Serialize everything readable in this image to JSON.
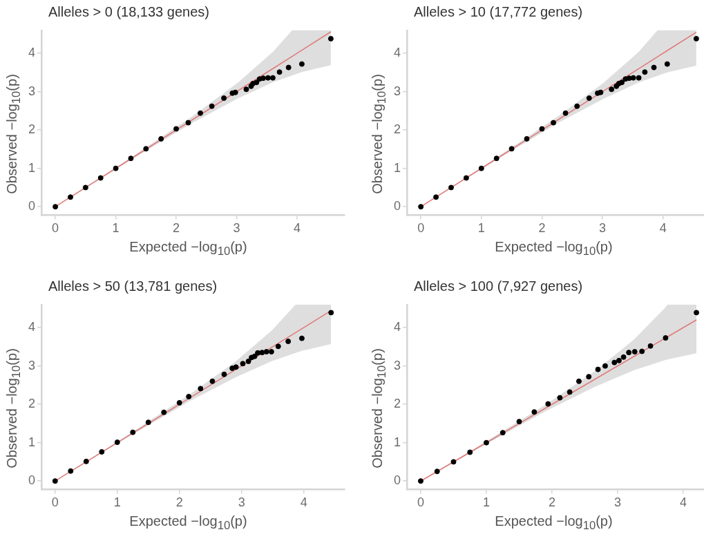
{
  "chart_data": [
    {
      "type": "scatter",
      "title": "Alleles > 0 (18,133 genes)",
      "xlabel": "Expected −log$_{10}$(p)",
      "ylabel": "Observed −log$_{10}$(p)",
      "xlim": [
        -0.23,
        4.79
      ],
      "ylim": [
        -0.22,
        4.6
      ],
      "xticks": [
        0,
        1,
        2,
        3,
        4
      ],
      "yticks": [
        0,
        1,
        2,
        3,
        4
      ],
      "grid": false,
      "series": [
        {
          "type": "line",
          "marker": "none",
          "color": "#e07b7b",
          "x": [
            0,
            1.26,
            2.26,
            3.02,
            3.61,
            3.92,
            4.08,
            4.56
          ],
          "values": [
            0,
            1.26,
            2.26,
            3.02,
            3.61,
            3.92,
            4.08,
            4.56
          ],
          "lower": [
            0,
            1.23,
            2.18,
            2.82,
            3.25,
            3.42,
            3.51,
            3.69
          ],
          "upper": [
            0,
            1.29,
            2.35,
            3.23,
            4.05,
            4.6,
            4.6,
            4.6
          ]
        },
        {
          "marker": "circle",
          "color": "#000000",
          "x": [
            0,
            0.25,
            0.5,
            0.75,
            1,
            1.25,
            1.5,
            1.75,
            2,
            2.2,
            2.4,
            2.59,
            2.79,
            2.93,
            2.98,
            3.16,
            3.24,
            3.27,
            3.33,
            3.38,
            3.44,
            3.52,
            3.6,
            3.71,
            3.86,
            4.08,
            4.56
          ],
          "values": [
            0,
            0.25,
            0.5,
            0.75,
            1,
            1.26,
            1.51,
            1.77,
            2.03,
            2.19,
            2.44,
            2.62,
            2.83,
            2.96,
            2.98,
            3.06,
            3.14,
            3.21,
            3.24,
            3.33,
            3.35,
            3.36,
            3.36,
            3.51,
            3.63,
            3.72,
            4.38
          ]
        }
      ]
    },
    {
      "type": "scatter",
      "title": "Alleles > 10 (17,772 genes)",
      "xlabel": "Expected −log$_{10}$(p)",
      "ylabel": "Observed −log$_{10}$(p)",
      "xlim": [
        -0.23,
        4.78
      ],
      "ylim": [
        -0.22,
        4.6
      ],
      "xticks": [
        0,
        1,
        2,
        3,
        4
      ],
      "yticks": [
        0,
        1,
        2,
        3,
        4
      ],
      "grid": false,
      "series": [
        {
          "type": "line",
          "marker": "none",
          "color": "#e07b7b",
          "x": [
            0,
            1.25,
            2.25,
            3.01,
            3.6,
            3.91,
            4.07,
            4.55
          ],
          "values": [
            0,
            1.25,
            2.25,
            3.01,
            3.6,
            3.91,
            4.07,
            4.55
          ],
          "lower": [
            0,
            1.22,
            2.17,
            2.81,
            3.24,
            3.41,
            3.5,
            3.68
          ],
          "upper": [
            0,
            1.28,
            2.34,
            3.22,
            4.04,
            4.6,
            4.6,
            4.6
          ]
        },
        {
          "marker": "circle",
          "color": "#000000",
          "x": [
            0,
            0.25,
            0.5,
            0.75,
            1,
            1.25,
            1.5,
            1.75,
            2,
            2.19,
            2.39,
            2.58,
            2.78,
            2.92,
            2.97,
            3.15,
            3.23,
            3.27,
            3.32,
            3.38,
            3.44,
            3.51,
            3.6,
            3.7,
            3.85,
            4.07,
            4.55
          ],
          "values": [
            0,
            0.25,
            0.5,
            0.75,
            1,
            1.26,
            1.51,
            1.77,
            2.03,
            2.19,
            2.44,
            2.62,
            2.83,
            2.96,
            2.98,
            3.06,
            3.14,
            3.21,
            3.24,
            3.33,
            3.35,
            3.36,
            3.36,
            3.51,
            3.63,
            3.72,
            4.38
          ]
        }
      ]
    },
    {
      "type": "scatter",
      "title": "Alleles > 50 (13,781 genes)",
      "xlabel": "Expected −log$_{10}$(p)",
      "ylabel": "Observed −log$_{10}$(p)",
      "xlim": [
        -0.22,
        4.66
      ],
      "ylim": [
        -0.22,
        4.6
      ],
      "xticks": [
        0,
        1,
        2,
        3,
        4
      ],
      "yticks": [
        0,
        1,
        2,
        3,
        4
      ],
      "grid": false,
      "series": [
        {
          "type": "line",
          "marker": "none",
          "color": "#e07b7b",
          "x": [
            0,
            1.14,
            2.14,
            2.9,
            3.49,
            3.87,
            3.96,
            4.44
          ],
          "values": [
            0,
            1.14,
            2.14,
            2.9,
            3.49,
            3.87,
            3.96,
            4.44
          ],
          "lower": [
            0,
            1.11,
            2.06,
            2.7,
            3.13,
            3.34,
            3.39,
            3.57
          ],
          "upper": [
            0,
            1.17,
            2.23,
            3.11,
            3.93,
            4.6,
            4.6,
            4.6
          ]
        },
        {
          "marker": "circle",
          "color": "#000000",
          "x": [
            0,
            0.25,
            0.5,
            0.75,
            1,
            1.25,
            1.5,
            1.75,
            2,
            2.15,
            2.34,
            2.53,
            2.72,
            2.85,
            2.91,
            3.02,
            3.11,
            3.16,
            3.21,
            3.26,
            3.33,
            3.4,
            3.48,
            3.59,
            3.75,
            3.97,
            4.44
          ],
          "values": [
            0,
            0.26,
            0.51,
            0.76,
            1.01,
            1.27,
            1.53,
            1.79,
            2.04,
            2.2,
            2.41,
            2.6,
            2.78,
            2.94,
            2.97,
            3.06,
            3.12,
            3.22,
            3.25,
            3.34,
            3.35,
            3.37,
            3.37,
            3.51,
            3.64,
            3.72,
            4.39
          ]
        }
      ]
    },
    {
      "type": "scatter",
      "title": "Alleles > 100 (7,927 genes)",
      "xlabel": "Expected −log$_{10}$(p)",
      "ylabel": "Observed −log$_{10}$(p)",
      "xlim": [
        -0.21,
        4.41
      ],
      "ylim": [
        -0.22,
        4.6
      ],
      "xticks": [
        0,
        1,
        2,
        3,
        4
      ],
      "yticks": [
        0,
        1,
        2,
        3,
        4
      ],
      "grid": false,
      "series": [
        {
          "type": "line",
          "marker": "none",
          "color": "#e07b7b",
          "x": [
            0,
            0.9,
            1.9,
            2.66,
            3.25,
            3.72,
            3.76,
            4.2
          ],
          "values": [
            0,
            0.9,
            1.9,
            2.66,
            3.25,
            3.72,
            3.76,
            4.2
          ],
          "lower": [
            0,
            0.87,
            1.82,
            2.46,
            2.89,
            3.15,
            3.17,
            3.33
          ],
          "upper": [
            0,
            0.93,
            1.99,
            2.87,
            3.69,
            4.51,
            4.6,
            4.6
          ]
        },
        {
          "marker": "circle",
          "color": "#000000",
          "x": [
            0,
            0.25,
            0.5,
            0.75,
            1,
            1.25,
            1.5,
            1.73,
            1.94,
            2.12,
            2.27,
            2.41,
            2.56,
            2.7,
            2.81,
            2.95,
            3.02,
            3.09,
            3.17,
            3.26,
            3.37,
            3.5,
            3.73,
            4.2
          ],
          "values": [
            0,
            0.25,
            0.5,
            0.75,
            1,
            1.26,
            1.55,
            1.8,
            2.01,
            2.17,
            2.32,
            2.6,
            2.72,
            2.91,
            3,
            3.09,
            3.14,
            3.23,
            3.35,
            3.37,
            3.38,
            3.52,
            3.73,
            4.39
          ]
        }
      ]
    }
  ]
}
